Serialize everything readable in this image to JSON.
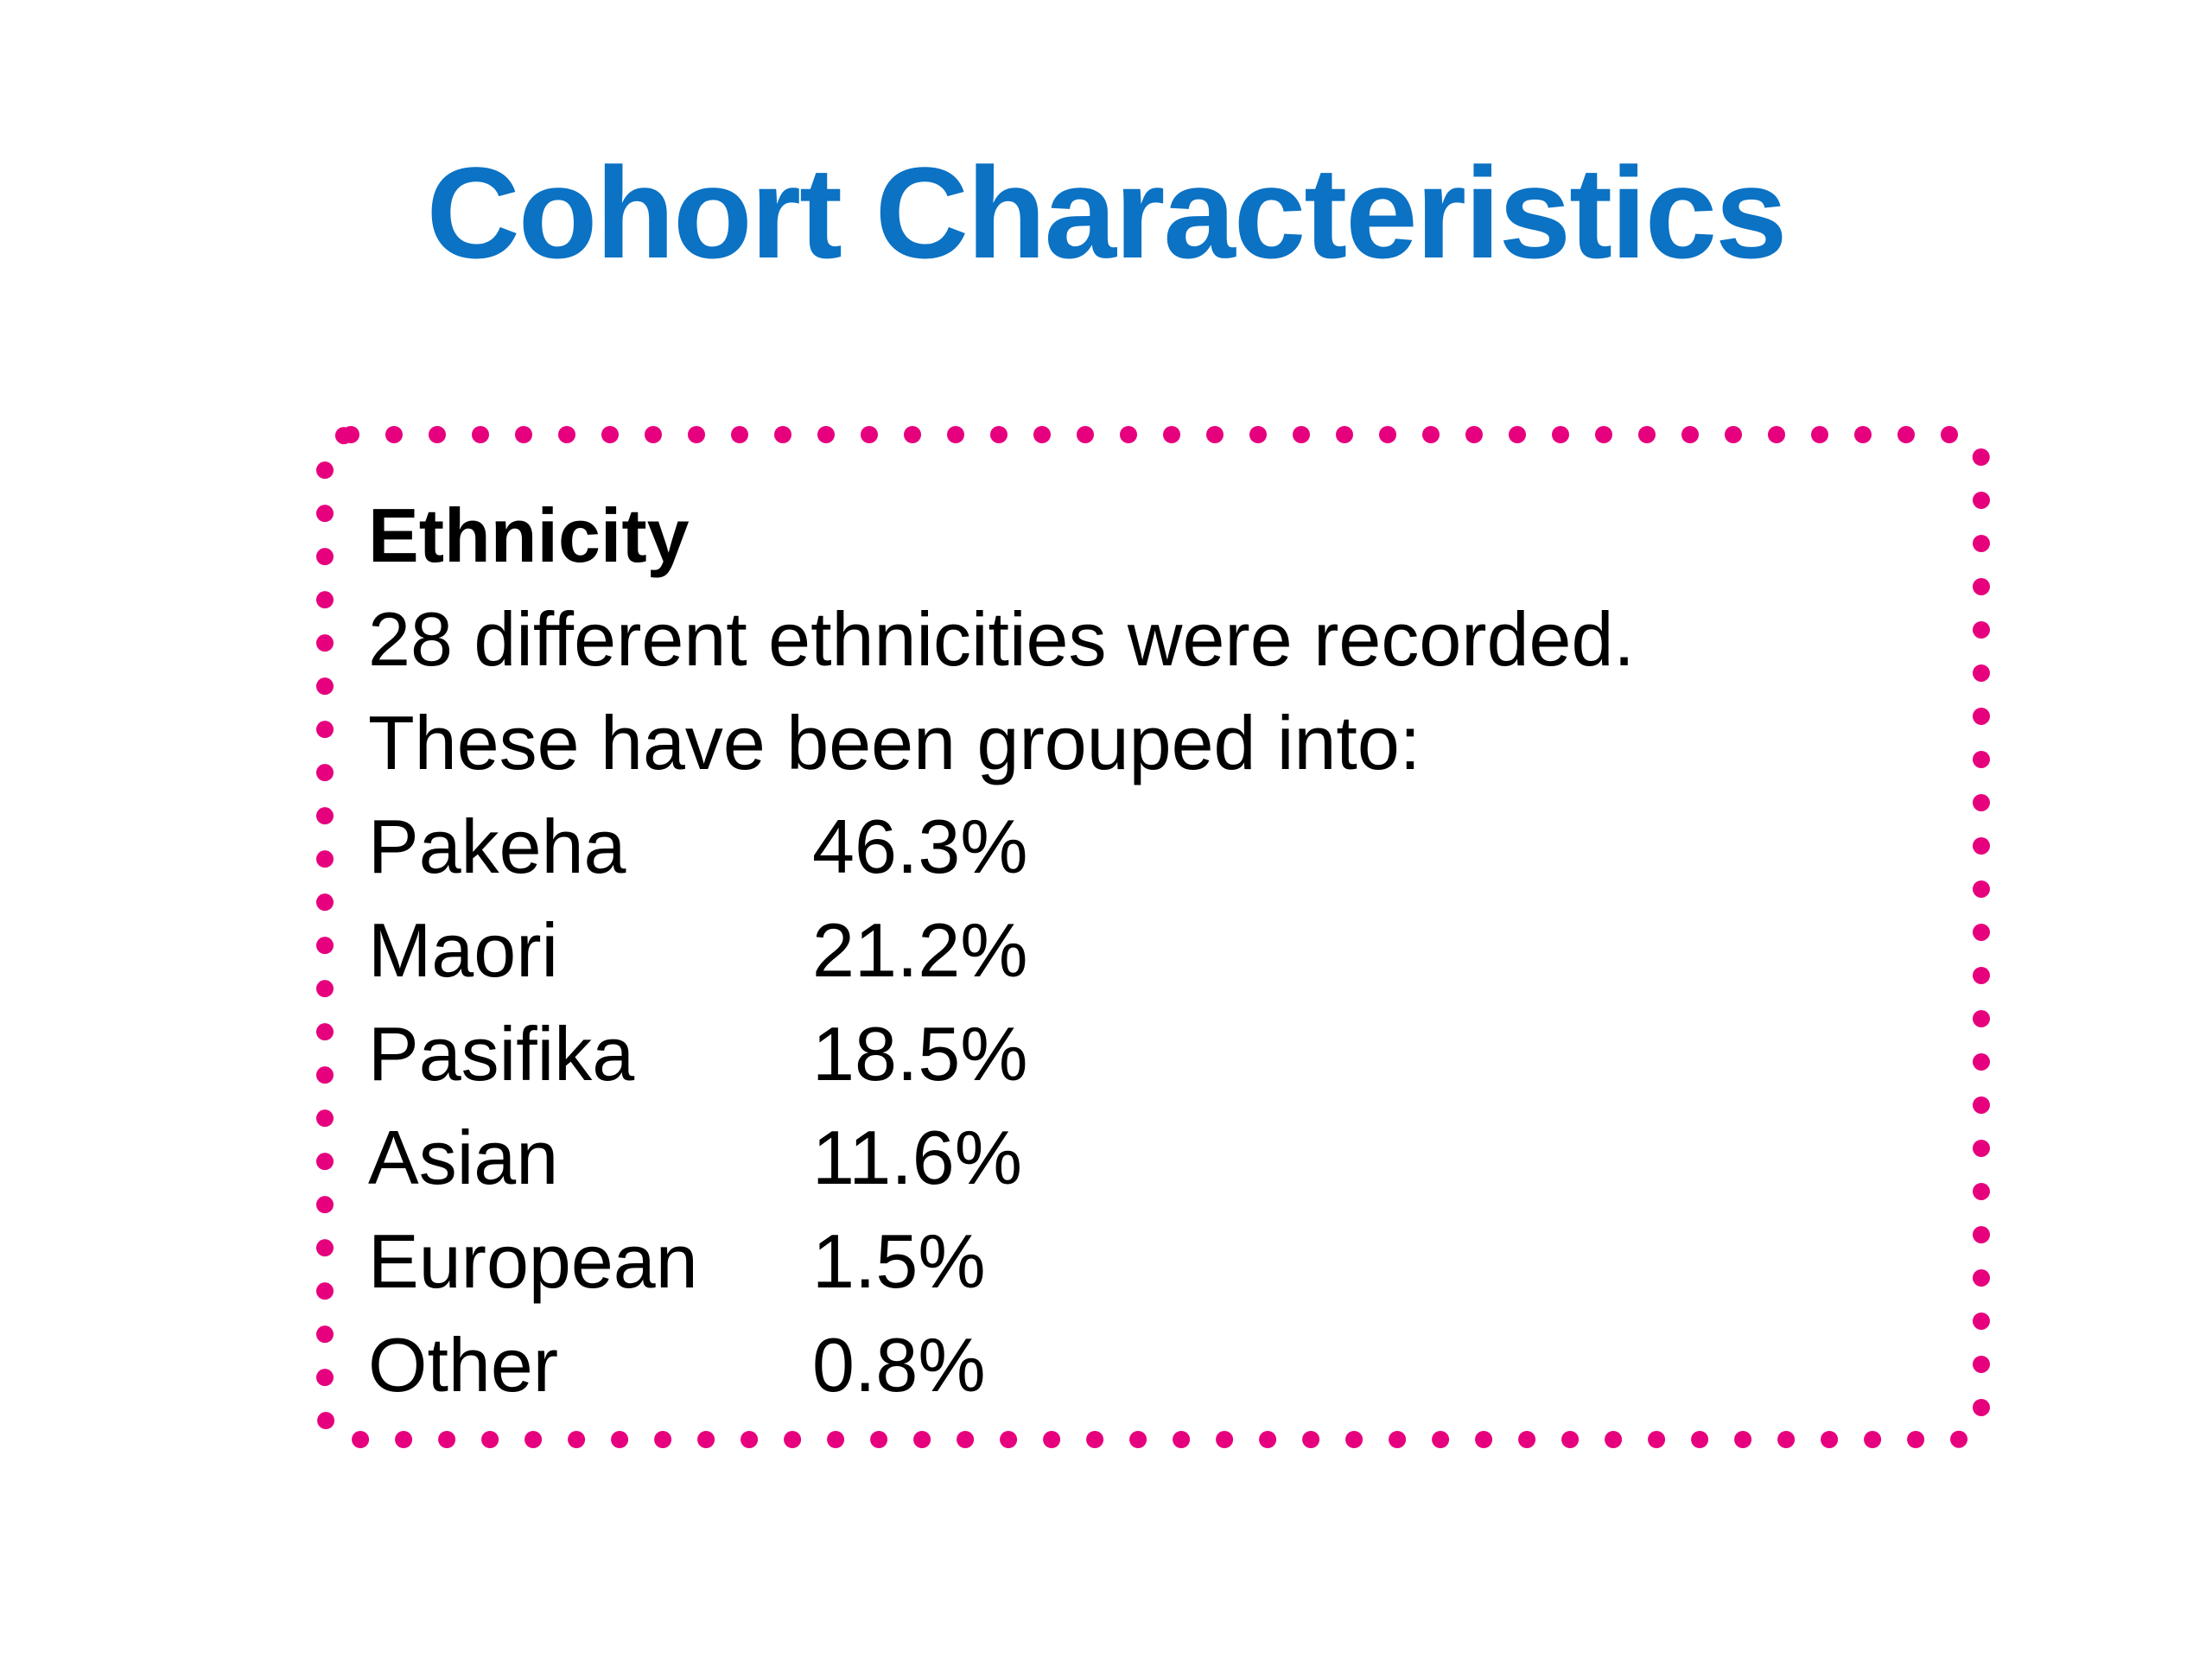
{
  "title": "Cohort Characteristics",
  "box": {
    "heading": "Ethnicity",
    "lines": [
      "28 different ethnicities were recorded.",
      "These have been grouped into:"
    ],
    "groups": [
      {
        "name": "Pakeha",
        "percent": "46.3%"
      },
      {
        "name": "Maori",
        "percent": "21.2%"
      },
      {
        "name": "Pasifika",
        "percent": "18.5%"
      },
      {
        "name": "Asian",
        "percent": "11.6%"
      },
      {
        "name": "European",
        "percent": "1.5%"
      },
      {
        "name": "Other",
        "percent": "0.8%"
      }
    ]
  }
}
